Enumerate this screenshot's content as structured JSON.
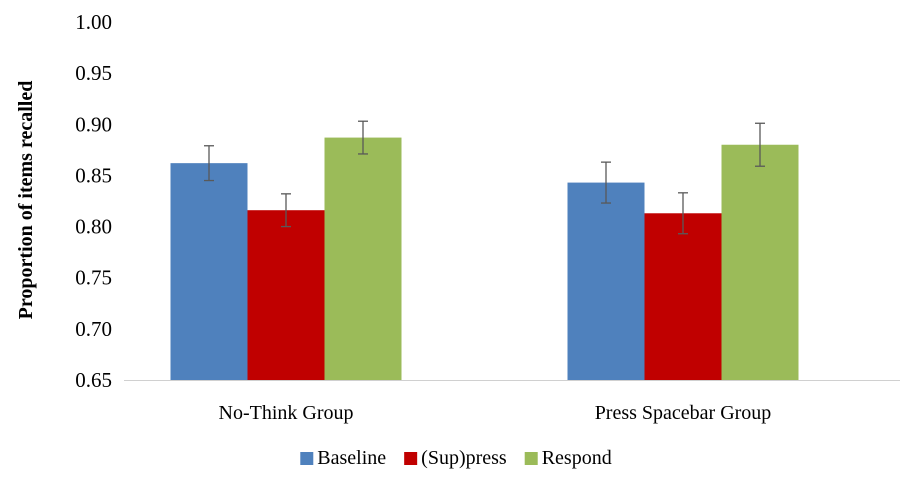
{
  "chart_data": {
    "type": "bar",
    "title": "",
    "xlabel": "",
    "ylabel": "Proportion of items recalled",
    "ylim": [
      0.65,
      1.0
    ],
    "yticks": [
      "0.65",
      "0.70",
      "0.75",
      "0.80",
      "0.85",
      "0.90",
      "0.95",
      "1.00"
    ],
    "grid": false,
    "legend_position": "bottom",
    "categories": [
      "No-Think Group",
      "Press Spacebar Group"
    ],
    "series": [
      {
        "name": "Baseline",
        "color": "#4f81bd",
        "values": [
          0.862,
          0.843
        ],
        "error": [
          0.017,
          0.02
        ]
      },
      {
        "name": "(Sup)press",
        "color": "#c00000",
        "values": [
          0.816,
          0.813
        ],
        "error": [
          0.016,
          0.02
        ]
      },
      {
        "name": "Respond",
        "color": "#9bbb59",
        "values": [
          0.887,
          0.88
        ],
        "error": [
          0.016,
          0.021
        ]
      }
    ]
  }
}
